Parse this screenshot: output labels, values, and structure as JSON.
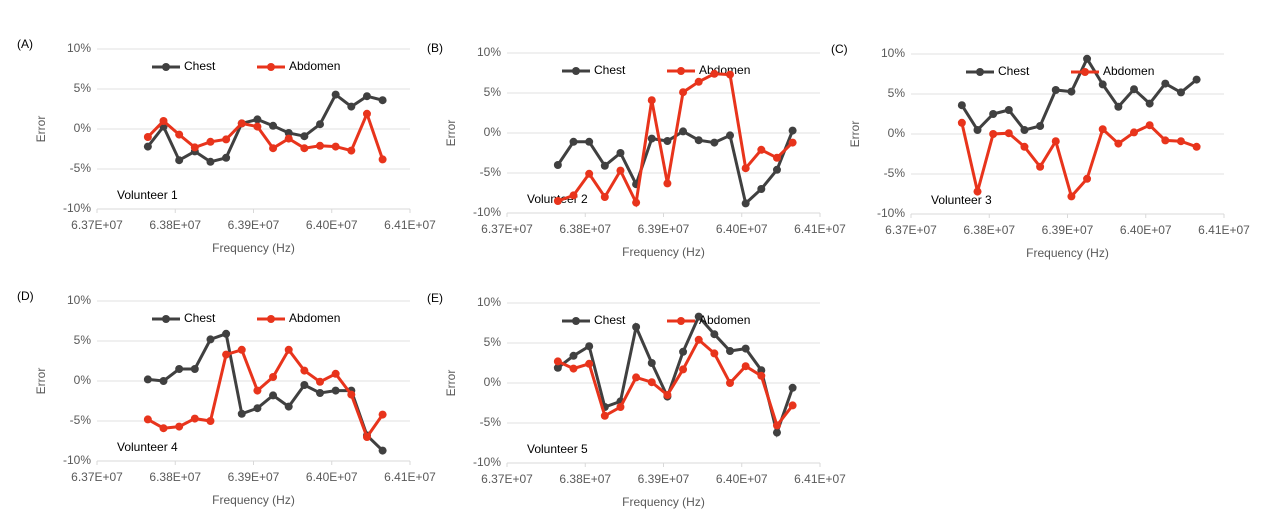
{
  "chart_data": [
    {
      "type": "line",
      "panel": "(A)",
      "annotation": "Volunteer 1",
      "x_label": "Frequency (Hz)",
      "y_label": "Error",
      "grid": true,
      "x": [
        63765000,
        63785000,
        63805000,
        63825000,
        63845000,
        63865000,
        63885000,
        63905000,
        63925000,
        63945000,
        63965000,
        63985000,
        64005000,
        64025000,
        64045000,
        64065000
      ],
      "series": [
        {
          "name": "Chest",
          "color": "#404040",
          "values": [
            -2.2,
            0.3,
            -3.9,
            -2.8,
            -4.1,
            -3.6,
            0.7,
            1.2,
            0.4,
            -0.5,
            -0.9,
            0.6,
            4.3,
            2.8,
            4.1,
            3.6
          ]
        },
        {
          "name": "Abdomen",
          "color": "#e8341c",
          "values": [
            -1.0,
            1.0,
            -0.7,
            -2.3,
            -1.6,
            -1.3,
            0.7,
            0.3,
            -2.4,
            -1.2,
            -2.4,
            -2.1,
            -2.2,
            -2.7,
            1.9,
            -3.8
          ]
        }
      ],
      "xlim": [
        63700000,
        64100000
      ],
      "xticks": [
        {
          "value": 63700000,
          "label": "6.37E+07"
        },
        {
          "value": 63800000,
          "label": "6.38E+07"
        },
        {
          "value": 63900000,
          "label": "6.39E+07"
        },
        {
          "value": 64000000,
          "label": "6.40E+07"
        },
        {
          "value": 64100000,
          "label": "6.41E+07"
        }
      ],
      "ylim": [
        -10,
        10
      ],
      "yticks": [
        {
          "value": -10,
          "label": "-10%"
        },
        {
          "value": -5,
          "label": "-5%"
        },
        {
          "value": 0,
          "label": "0%"
        },
        {
          "value": 5,
          "label": "5%"
        },
        {
          "value": 10,
          "label": "10%"
        }
      ]
    },
    {
      "type": "line",
      "panel": "(B)",
      "annotation": "Volunteer 2",
      "x_label": "Frequency (Hz)",
      "y_label": "Error",
      "grid": true,
      "x": [
        63765000,
        63785000,
        63805000,
        63825000,
        63845000,
        63865000,
        63885000,
        63905000,
        63925000,
        63945000,
        63965000,
        63985000,
        64005000,
        64025000,
        64045000,
        64065000
      ],
      "series": [
        {
          "name": "Chest",
          "color": "#404040",
          "values": [
            -4.0,
            -1.1,
            -1.1,
            -4.1,
            -2.5,
            -6.4,
            -0.7,
            -1.0,
            0.2,
            -0.9,
            -1.2,
            -0.3,
            -8.8,
            -7.0,
            -4.6,
            0.3
          ]
        },
        {
          "name": "Abdomen",
          "color": "#e8341c",
          "values": [
            -8.5,
            -7.8,
            -5.1,
            -8.0,
            -4.7,
            -8.7,
            4.1,
            -6.3,
            5.1,
            6.4,
            7.4,
            7.3,
            -4.4,
            -2.1,
            -3.1,
            -1.2
          ]
        }
      ],
      "xlim": [
        63700000,
        64100000
      ],
      "xticks": [
        {
          "value": 63700000,
          "label": "6.37E+07"
        },
        {
          "value": 63800000,
          "label": "6.38E+07"
        },
        {
          "value": 63900000,
          "label": "6.39E+07"
        },
        {
          "value": 64000000,
          "label": "6.40E+07"
        },
        {
          "value": 64100000,
          "label": "6.41E+07"
        }
      ],
      "ylim": [
        -10,
        10
      ],
      "yticks": [
        {
          "value": -10,
          "label": "-10%"
        },
        {
          "value": -5,
          "label": "-5%"
        },
        {
          "value": 0,
          "label": "0%"
        },
        {
          "value": 5,
          "label": "5%"
        },
        {
          "value": 10,
          "label": "10%"
        }
      ]
    },
    {
      "type": "line",
      "panel": "(C)",
      "annotation": "Volunteer 3",
      "x_label": "Frequency (Hz)",
      "y_label": "Error",
      "grid": true,
      "x": [
        63765000,
        63785000,
        63805000,
        63825000,
        63845000,
        63865000,
        63885000,
        63905000,
        63925000,
        63945000,
        63965000,
        63985000,
        64005000,
        64025000,
        64045000,
        64065000
      ],
      "series": [
        {
          "name": "Chest",
          "color": "#404040",
          "values": [
            3.6,
            0.5,
            2.5,
            3.0,
            0.5,
            1.0,
            5.5,
            5.3,
            9.4,
            6.2,
            3.4,
            5.6,
            3.8,
            6.3,
            5.2,
            6.8
          ]
        },
        {
          "name": "Abdomen",
          "color": "#e8341c",
          "values": [
            1.4,
            -7.2,
            0.0,
            0.1,
            -1.6,
            -4.1,
            -0.9,
            -7.8,
            -5.6,
            0.6,
            -1.2,
            0.2,
            1.1,
            -0.8,
            -0.9,
            -1.6
          ]
        }
      ],
      "xlim": [
        63700000,
        64100000
      ],
      "xticks": [
        {
          "value": 63700000,
          "label": "6.37E+07"
        },
        {
          "value": 63800000,
          "label": "6.38E+07"
        },
        {
          "value": 63900000,
          "label": "6.39E+07"
        },
        {
          "value": 64000000,
          "label": "6.40E+07"
        },
        {
          "value": 64100000,
          "label": "6.41E+07"
        }
      ],
      "ylim": [
        -10,
        10
      ],
      "yticks": [
        {
          "value": -10,
          "label": "-10%"
        },
        {
          "value": -5,
          "label": "-5%"
        },
        {
          "value": 0,
          "label": "0%"
        },
        {
          "value": 5,
          "label": "5%"
        },
        {
          "value": 10,
          "label": "10%"
        }
      ]
    },
    {
      "type": "line",
      "panel": "(D)",
      "annotation": "Volunteer 4",
      "x_label": "Frequency (Hz)",
      "y_label": "Error",
      "grid": true,
      "x": [
        63765000,
        63785000,
        63805000,
        63825000,
        63845000,
        63865000,
        63885000,
        63905000,
        63925000,
        63945000,
        63965000,
        63985000,
        64005000,
        64025000,
        64045000,
        64065000
      ],
      "series": [
        {
          "name": "Chest",
          "color": "#404040",
          "values": [
            0.2,
            0.0,
            1.5,
            1.5,
            5.2,
            5.9,
            -4.1,
            -3.4,
            -1.8,
            -3.2,
            -0.5,
            -1.5,
            -1.2,
            -1.2,
            -6.8,
            -8.7
          ]
        },
        {
          "name": "Abdomen",
          "color": "#e8341c",
          "values": [
            -4.8,
            -5.9,
            -5.7,
            -4.7,
            -5.0,
            3.3,
            3.9,
            -1.2,
            0.5,
            3.9,
            1.3,
            -0.1,
            0.9,
            -1.7,
            -7.0,
            -4.2
          ]
        }
      ],
      "xlim": [
        63700000,
        64100000
      ],
      "xticks": [
        {
          "value": 63700000,
          "label": "6.37E+07"
        },
        {
          "value": 63800000,
          "label": "6.38E+07"
        },
        {
          "value": 63900000,
          "label": "6.39E+07"
        },
        {
          "value": 64000000,
          "label": "6.40E+07"
        },
        {
          "value": 64100000,
          "label": "6.41E+07"
        }
      ],
      "ylim": [
        -10,
        10
      ],
      "yticks": [
        {
          "value": -10,
          "label": "-10%"
        },
        {
          "value": -5,
          "label": "-5%"
        },
        {
          "value": 0,
          "label": "0%"
        },
        {
          "value": 5,
          "label": "5%"
        },
        {
          "value": 10,
          "label": "10%"
        }
      ]
    },
    {
      "type": "line",
      "panel": "(E)",
      "annotation": "Volunteer 5",
      "x_label": "Frequency (Hz)",
      "y_label": "Error",
      "grid": true,
      "x": [
        63765000,
        63785000,
        63805000,
        63825000,
        63845000,
        63865000,
        63885000,
        63905000,
        63925000,
        63945000,
        63965000,
        63985000,
        64005000,
        64025000,
        64045000,
        64065000
      ],
      "series": [
        {
          "name": "Chest",
          "color": "#404040",
          "values": [
            1.9,
            3.4,
            4.6,
            -3.0,
            -2.3,
            7.0,
            2.5,
            -1.7,
            3.9,
            8.3,
            6.1,
            4.0,
            4.3,
            1.6,
            -6.2,
            -0.6
          ]
        },
        {
          "name": "Abdomen",
          "color": "#e8341c",
          "values": [
            2.7,
            1.8,
            2.4,
            -4.1,
            -3.0,
            0.7,
            0.1,
            -1.5,
            1.7,
            5.4,
            3.7,
            0.0,
            2.1,
            0.9,
            -5.3,
            -2.8
          ]
        }
      ],
      "xlim": [
        63700000,
        64100000
      ],
      "xticks": [
        {
          "value": 63700000,
          "label": "6.37E+07"
        },
        {
          "value": 63800000,
          "label": "6.38E+07"
        },
        {
          "value": 63900000,
          "label": "6.39E+07"
        },
        {
          "value": 64000000,
          "label": "6.40E+07"
        },
        {
          "value": 64100000,
          "label": "6.41E+07"
        }
      ],
      "ylim": [
        -10,
        10
      ],
      "yticks": [
        {
          "value": -10,
          "label": "-10%"
        },
        {
          "value": -5,
          "label": "-5%"
        },
        {
          "value": 0,
          "label": "0%"
        },
        {
          "value": 5,
          "label": "5%"
        },
        {
          "value": 10,
          "label": "10%"
        }
      ]
    }
  ]
}
